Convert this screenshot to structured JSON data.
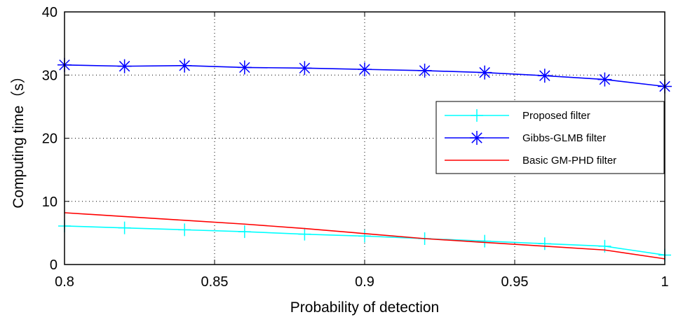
{
  "chart_data": {
    "type": "line",
    "title": "",
    "xlabel": "Probability of detection",
    "ylabel": "Computing time（s）",
    "xlim": [
      0.8,
      1.0
    ],
    "ylim": [
      0,
      40
    ],
    "grid": true,
    "grid_style": "dotted",
    "legend_position": "right",
    "x": [
      0.8,
      0.82,
      0.84,
      0.86,
      0.88,
      0.9,
      0.92,
      0.94,
      0.96,
      0.98,
      1.0
    ],
    "xticks": [
      0.8,
      0.85,
      0.9,
      0.95,
      1.0
    ],
    "xtick_labels": [
      "0.8",
      "0.85",
      "0.9",
      "0.95",
      "1"
    ],
    "yticks": [
      0,
      10,
      20,
      30,
      40
    ],
    "ytick_labels": [
      "0",
      "10",
      "20",
      "30",
      "40"
    ],
    "series": [
      {
        "name": "Proposed filter",
        "color": "#00ffff",
        "marker": "plus",
        "values": [
          6.1,
          5.8,
          5.5,
          5.2,
          4.8,
          4.5,
          4.1,
          3.7,
          3.3,
          2.9,
          1.5
        ]
      },
      {
        "name": "Gibbs-GLMB filter",
        "color": "#0000ff",
        "marker": "asterisk",
        "values": [
          31.6,
          31.4,
          31.5,
          31.2,
          31.1,
          30.9,
          30.7,
          30.4,
          29.9,
          29.3,
          28.2
        ]
      },
      {
        "name": "Basic GM-PHD filter",
        "color": "#ff0000",
        "marker": "none",
        "values": [
          8.2,
          7.6,
          7.0,
          6.4,
          5.7,
          4.9,
          4.1,
          3.5,
          2.9,
          2.3,
          0.9
        ]
      }
    ]
  }
}
